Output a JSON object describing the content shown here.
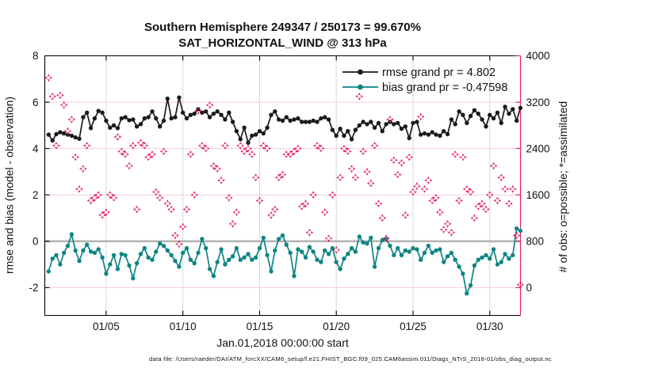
{
  "title": {
    "line1": "Southern Hemisphere 249347 / 250173 = 99.670%",
    "line2": "SAT_HORIZONTAL_WIND @ 313 hPa"
  },
  "legend": {
    "text_color": "#0033ff",
    "items": [
      {
        "label": "rmse grand pr = 4.802",
        "color": "#1a1a1a"
      },
      {
        "label": "bias grand pr = -0.47598",
        "color": "#0e8584"
      }
    ]
  },
  "axes": {
    "x": {
      "label": "Jan.01,2018 00:00:00 start",
      "tick_labels": [
        "01/05",
        "01/10",
        "01/15",
        "01/20",
        "01/25",
        "01/30"
      ],
      "tick_days": [
        4,
        9,
        14,
        19,
        24,
        29
      ],
      "range_days": [
        0,
        31
      ],
      "color": "#111111"
    },
    "left": {
      "label": "rmse and bias (model - observation)",
      "ticks": [
        -2,
        0,
        2,
        4,
        6,
        8
      ],
      "range": [
        -3.2,
        8
      ],
      "color": "#111111"
    },
    "right": {
      "label": "# of obs: o=possible; *=assimilated",
      "ticks": [
        0,
        800,
        1600,
        2400,
        3200,
        4000
      ],
      "range": [
        -480,
        4000
      ],
      "color": "#e6145f"
    }
  },
  "grid": {
    "vertical_color": "#d8d8d8",
    "horizontal_color": "#f7ccd9",
    "zero_line_color": "#b4b4b4"
  },
  "footer": "data file: /Users/raeder/DAI/ATM_forcXX/CAM6_setup/f.e21.FHIST_BGC.f09_025.CAM6assim.011/Diags_NTrS_2018-01/obs_diag_output.nc",
  "chart_data": {
    "type": "line",
    "title": "Southern Hemisphere 249347 / 250173 = 99.670% — SAT_HORIZONTAL_WIND @ 313 hPa",
    "x_start_day": 0.25,
    "x_step_days": 0.25,
    "xlim_days": [
      0,
      31
    ],
    "ylim_left": [
      -3.2,
      8
    ],
    "ylim_right": [
      -480,
      4000
    ],
    "rmse_grand_pr": 4.802,
    "bias_grand_pr": -0.47598,
    "obs_possible": 250173,
    "obs_assimilated_total": 249347,
    "series": [
      {
        "name": "rmse",
        "axis": "left",
        "color": "#1a1a1a",
        "marker": "circle",
        "line": true,
        "values": [
          4.6,
          4.35,
          4.62,
          4.7,
          4.65,
          4.6,
          4.55,
          4.48,
          4.42,
          5.35,
          5.55,
          4.88,
          5.3,
          5.62,
          5.55,
          5.2,
          4.9,
          5.0,
          4.88,
          5.3,
          5.35,
          5.22,
          5.25,
          4.95,
          5.05,
          5.3,
          5.35,
          5.6,
          5.3,
          4.95,
          5.2,
          6.15,
          5.3,
          5.35,
          6.2,
          5.55,
          5.3,
          5.45,
          5.5,
          5.7,
          5.55,
          5.6,
          5.35,
          5.5,
          5.6,
          5.45,
          5.25,
          5.55,
          5.15,
          4.75,
          4.4,
          4.9,
          4.25,
          4.55,
          4.6,
          4.75,
          4.65,
          4.9,
          5.45,
          5.6,
          5.25,
          5.2,
          5.35,
          5.2,
          5.25,
          5.3,
          5.15,
          5.15,
          5.15,
          5.2,
          5.15,
          5.3,
          5.35,
          5.25,
          4.8,
          4.55,
          4.85,
          4.55,
          4.75,
          4.4,
          4.8,
          5.0,
          5.15,
          5.05,
          5.15,
          4.9,
          5.1,
          4.75,
          5.05,
          5.15,
          5.05,
          5.1,
          4.85,
          4.95,
          4.45,
          5.1,
          5.15,
          4.6,
          4.65,
          4.6,
          4.7,
          4.6,
          4.55,
          4.75,
          4.62,
          5.25,
          5.05,
          5.6,
          5.45,
          5.1,
          5.4,
          5.65,
          5.5,
          5.25,
          4.95,
          5.45,
          5.3,
          5.55,
          5.1,
          5.8,
          5.5,
          5.7,
          5.2,
          5.75
        ]
      },
      {
        "name": "bias",
        "axis": "left",
        "color": "#0e8584",
        "marker": "circle",
        "line": true,
        "values": [
          -1.3,
          -0.75,
          -0.6,
          -1.0,
          -0.5,
          -0.2,
          0.3,
          -0.4,
          -0.85,
          -0.4,
          -0.15,
          -0.45,
          -0.5,
          -0.35,
          -0.7,
          -1.4,
          -1.0,
          -0.6,
          -1.2,
          -0.55,
          -0.6,
          -1.05,
          -1.6,
          -0.95,
          -0.55,
          -0.3,
          -0.7,
          -0.8,
          -0.45,
          -0.1,
          -0.2,
          -0.4,
          -0.6,
          -0.85,
          -1.1,
          -0.5,
          -0.3,
          -0.8,
          -0.95,
          -0.5,
          0.1,
          -0.3,
          -1.2,
          -1.5,
          -0.9,
          -0.35,
          -1.0,
          -0.8,
          -0.65,
          -0.3,
          -0.8,
          -0.7,
          -0.55,
          -0.8,
          -0.7,
          -0.3,
          0.15,
          -0.6,
          -1.3,
          -0.4,
          0.1,
          0.25,
          -0.15,
          -0.5,
          -1.5,
          -0.35,
          -0.45,
          -0.7,
          -0.25,
          -0.45,
          -0.8,
          -0.9,
          -0.4,
          -0.55,
          -0.3,
          -0.9,
          -1.2,
          -0.75,
          -0.55,
          -0.3,
          -0.45,
          0.2,
          -0.05,
          -0.1,
          0.15,
          -1.1,
          -0.3,
          0.05,
          0.1,
          -0.2,
          -0.6,
          -0.3,
          -0.6,
          -0.4,
          -0.45,
          -0.3,
          -0.35,
          -0.8,
          -0.5,
          -0.2,
          -0.5,
          -0.4,
          -0.35,
          -0.9,
          -0.65,
          -0.5,
          -0.8,
          -1.1,
          -1.4,
          -2.25,
          -1.9,
          -1.05,
          -0.8,
          -0.7,
          -0.6,
          -0.75,
          -0.35,
          -1.0,
          -0.9,
          -0.55,
          -0.75,
          -0.6,
          0.55,
          0.45
        ]
      },
      {
        "name": "obs_assimilated",
        "axis": "right",
        "color": "#e6145f",
        "marker": "star",
        "line": false,
        "values": [
          3620,
          3300,
          2450,
          3320,
          3150,
          2700,
          2900,
          2250,
          1700,
          2050,
          2450,
          1500,
          1550,
          1600,
          1250,
          1300,
          1600,
          1550,
          2600,
          2350,
          2300,
          2100,
          2450,
          1350,
          2500,
          2450,
          2250,
          2300,
          1650,
          1550,
          2350,
          1450,
          1350,
          900,
          750,
          1050,
          1350,
          2300,
          1600,
          3050,
          2450,
          2400,
          3150,
          2100,
          2050,
          1850,
          2450,
          1550,
          1100,
          1300,
          2450,
          2350,
          2400,
          2300,
          1900,
          1500,
          2450,
          2400,
          1250,
          1350,
          1900,
          1950,
          2300,
          2300,
          2350,
          2400,
          1400,
          1450,
          950,
          1600,
          2450,
          2400,
          1300,
          850,
          1600,
          650,
          1900,
          2400,
          2350,
          2050,
          1900,
          3300,
          2350,
          2000,
          1800,
          2450,
          1450,
          1200,
          850,
          2900,
          2200,
          1950,
          2150,
          1250,
          2250,
          1650,
          1750,
          2950,
          1700,
          1850,
          1500,
          1550,
          1300,
          1000,
          1100,
          950,
          2300,
          1500,
          2250,
          1700,
          1650,
          1200,
          1400,
          1450,
          1350,
          1600,
          2100,
          1500,
          1900,
          1700,
          1450,
          1700,
          900,
          50
        ]
      }
    ]
  }
}
